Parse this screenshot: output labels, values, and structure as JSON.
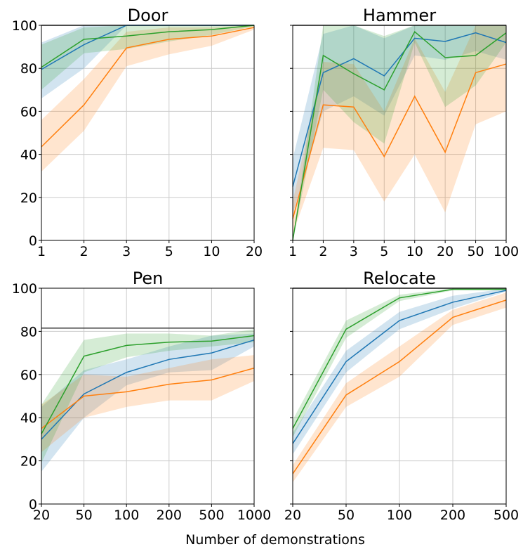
{
  "figure": {
    "xlabel": "Number of demonstrations",
    "colors": {
      "blue": "#1f77b4",
      "orange": "#ff7f0e",
      "green": "#2ca02c",
      "reference": "#333333",
      "grid": "#cccccc"
    }
  },
  "chart_data": [
    {
      "type": "line",
      "title": "Door",
      "x": [
        "1",
        "2",
        "3",
        "5",
        "10",
        "20"
      ],
      "ylim": [
        0,
        100
      ],
      "yticks": [
        "0",
        "20",
        "40",
        "60",
        "80",
        "100"
      ],
      "grid": true,
      "reference_line": 100,
      "series": [
        {
          "color": "blue",
          "values": [
            79.5,
            91,
            100,
            100,
            100,
            100
          ],
          "lower": [
            66,
            80,
            100,
            100,
            100,
            100
          ],
          "upper": [
            92,
            100,
            100,
            100,
            100,
            100
          ]
        },
        {
          "color": "orange",
          "values": [
            43.5,
            63,
            89.5,
            93.5,
            95,
            99
          ],
          "lower": [
            32,
            51,
            81,
            86.5,
            90.5,
            98
          ],
          "upper": [
            56,
            75,
            97,
            99,
            99,
            100
          ]
        },
        {
          "color": "green",
          "values": [
            80.5,
            93.5,
            95,
            97,
            98,
            100
          ],
          "lower": [
            70,
            87,
            89,
            92.5,
            95.5,
            99.5
          ],
          "upper": [
            91,
            99,
            100,
            100,
            100,
            100
          ]
        }
      ]
    },
    {
      "type": "line",
      "title": "Hammer",
      "x": [
        "1",
        "2",
        "3",
        "5",
        "10",
        "20",
        "50",
        "100"
      ],
      "ylim": [
        0,
        100
      ],
      "yticks": [
        "0",
        "20",
        "40",
        "60",
        "80",
        "100"
      ],
      "grid": true,
      "reference_line": 100,
      "series": [
        {
          "color": "blue",
          "values": [
            25,
            78,
            84.5,
            76.5,
            94,
            92.5,
            96.5,
            92
          ],
          "lower": [
            12,
            60,
            67,
            58,
            86,
            84,
            88,
            84
          ],
          "upper": [
            38,
            96,
            100,
            94,
            100,
            100,
            100,
            100
          ]
        },
        {
          "color": "orange",
          "values": [
            10,
            63,
            62,
            39,
            67,
            41,
            78,
            82
          ],
          "lower": [
            3,
            43,
            42,
            18,
            40,
            13,
            54,
            60
          ],
          "upper": [
            18,
            83,
            82,
            60,
            94,
            69,
            100,
            100
          ]
        },
        {
          "color": "green",
          "values": [
            0,
            86,
            77.5,
            70,
            97,
            85,
            86,
            96.5
          ],
          "lower": [
            0,
            70,
            55,
            45,
            92,
            62,
            72,
            92
          ],
          "upper": [
            0,
            100,
            100,
            95,
            100,
            100,
            100,
            100
          ]
        }
      ]
    },
    {
      "type": "line",
      "title": "Pen",
      "x": [
        "20",
        "50",
        "100",
        "200",
        "500",
        "1000"
      ],
      "ylim": [
        0,
        100
      ],
      "yticks": [
        "0",
        "20",
        "40",
        "60",
        "80",
        "100"
      ],
      "grid": true,
      "reference_line": 81.5,
      "series": [
        {
          "color": "blue",
          "values": [
            30,
            51,
            61,
            67,
            70,
            76
          ],
          "lower": [
            15,
            40,
            55,
            61,
            62,
            73
          ],
          "upper": [
            45,
            62,
            67,
            73,
            78,
            79
          ]
        },
        {
          "color": "orange",
          "values": [
            35,
            50,
            52,
            55.5,
            57.5,
            63
          ],
          "lower": [
            24,
            40,
            45,
            48,
            48,
            57
          ],
          "upper": [
            46,
            60,
            59,
            63,
            67,
            69
          ]
        },
        {
          "color": "green",
          "values": [
            32.5,
            68.5,
            73.5,
            75,
            75.5,
            78
          ],
          "lower": [
            19,
            61,
            68,
            71,
            73,
            75
          ],
          "upper": [
            46,
            76,
            79,
            79,
            78,
            81
          ]
        }
      ]
    },
    {
      "type": "line",
      "title": "Relocate",
      "x": [
        "20",
        "50",
        "100",
        "200",
        "500"
      ],
      "ylim": [
        0,
        100
      ],
      "yticks": [
        "0",
        "20",
        "40",
        "60",
        "80",
        "100"
      ],
      "grid": true,
      "reference_line": 100,
      "series": [
        {
          "color": "blue",
          "values": [
            28,
            66,
            85,
            93.5,
            99
          ],
          "lower": [
            23,
            61,
            81,
            90.5,
            98.5
          ],
          "upper": [
            33,
            71,
            89,
            96.5,
            99.8
          ]
        },
        {
          "color": "orange",
          "values": [
            14,
            50.5,
            66,
            86.5,
            94.5
          ],
          "lower": [
            10,
            45,
            59,
            83,
            91
          ],
          "upper": [
            18,
            56,
            73,
            90,
            98
          ]
        },
        {
          "color": "green",
          "values": [
            35,
            81,
            95.5,
            99.5,
            99.5
          ],
          "lower": [
            31,
            77,
            94,
            99,
            99
          ],
          "upper": [
            39,
            85,
            97,
            100,
            100
          ]
        }
      ]
    }
  ]
}
